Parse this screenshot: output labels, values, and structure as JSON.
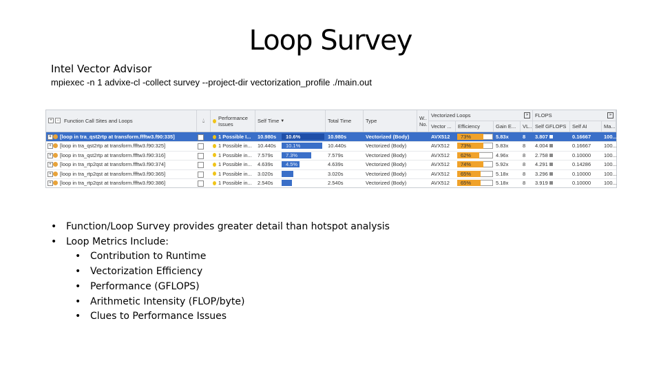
{
  "slide": {
    "title": "Loop Survey",
    "subtitle": "Intel Vector Advisor",
    "command": "mpiexec -n 1 advixe-cl -collect survey --project-dir vectorization_profile ./main.out"
  },
  "advisor": {
    "header": {
      "call_sites": "Function Call Sites and Loops",
      "perf_issues_line1": "Performance",
      "perf_issues_line2": "Issues",
      "self_time": "Self Time",
      "total_time": "Total Time",
      "type": "Type",
      "w_line1": "W..",
      "w_line2": "No.",
      "group_vectorized": "Vectorized Loops",
      "group_flops": "FLOPS",
      "vector": "Vector ...",
      "efficiency": "Efficiency",
      "gain": "Gain E...",
      "vl": "VL...",
      "self_gflops": "Self GFLOPS",
      "self_ai": "Self AI",
      "ma": "Ma..."
    },
    "rows": [
      {
        "name": "[loop in tra_qst2rtp at transform.ffftw3.f90:335]",
        "issues": "1 Possible I...",
        "self_time": "10.980s",
        "self_pct": "10.6%",
        "self_frac": 0.106,
        "total_time": "10.980s",
        "type": "Vectorized (Body)",
        "vector": "AVX512",
        "eff": "73%",
        "eff_frac": 0.73,
        "gain": "5.83x",
        "vl": "8",
        "gflops": "3.807",
        "ai": "0.16667",
        "ma": "100...",
        "selected": true
      },
      {
        "name": "[loop in tra_qst2rtp at transform.ffftw3.f90:325]",
        "issues": "1 Possible in...",
        "self_time": "10.440s",
        "self_pct": "10.1%",
        "self_frac": 0.101,
        "total_time": "10.440s",
        "type": "Vectorized (Body)",
        "vector": "AVX512",
        "eff": "73%",
        "eff_frac": 0.73,
        "gain": "5.83x",
        "vl": "8",
        "gflops": "4.004",
        "ai": "0.16667",
        "ma": "100..."
      },
      {
        "name": "[loop in tra_qst2rtp at transform.ffftw3.f90:316]",
        "issues": "1 Possible in...",
        "self_time": "7.579s",
        "self_pct": "7.3%",
        "self_frac": 0.073,
        "total_time": "7.579s",
        "type": "Vectorized (Body)",
        "vector": "AVX512",
        "eff": "62%",
        "eff_frac": 0.62,
        "gain": "4.96x",
        "vl": "8",
        "gflops": "2.758",
        "ai": "0.10000",
        "ma": "100..."
      },
      {
        "name": "[loop in tra_rtp2qst at transform.ffftw3.f90:374]",
        "issues": "1 Possible in...",
        "self_time": "4.639s",
        "self_pct": "4.5%",
        "self_frac": 0.045,
        "total_time": "4.639s",
        "type": "Vectorized (Body)",
        "vector": "AVX512",
        "eff": "74%",
        "eff_frac": 0.74,
        "gain": "5.92x",
        "vl": "8",
        "gflops": "4.291",
        "ai": "0.14286",
        "ma": "100..."
      },
      {
        "name": "[loop in tra_rtp2qst at transform.ffftw3.f90:365]",
        "issues": "1 Possible in...",
        "self_time": "3.020s",
        "self_pct": "",
        "self_frac": 0.029,
        "total_time": "3.020s",
        "type": "Vectorized (Body)",
        "vector": "AVX512",
        "eff": "65%",
        "eff_frac": 0.65,
        "gain": "5.18x",
        "vl": "8",
        "gflops": "3.296",
        "ai": "0.10000",
        "ma": "100..."
      },
      {
        "name": "[loop in tra_rtp2qst at transform.ffftw3.f90:386]",
        "issues": "1 Possible in...",
        "self_time": "2.540s",
        "self_pct": "",
        "self_frac": 0.025,
        "total_time": "2.540s",
        "type": "Vectorized (Body)",
        "vector": "AVX512",
        "eff": "65%",
        "eff_frac": 0.65,
        "gain": "5.18x",
        "vl": "8",
        "gflops": "3.919",
        "ai": "0.10000",
        "ma": "100..."
      }
    ]
  },
  "bullets": {
    "b1": "Function/Loop Survey provides greater detail than hotspot analysis",
    "b2": "Loop Metrics Include:",
    "sub": [
      "Contribution to Runtime",
      "Vectorization Efficiency",
      "Performance (GFLOPS)",
      "Arithmetic Intensity (FLOP/byte)",
      "Clues to Performance Issues"
    ]
  },
  "colors": {
    "selection": "#3a6fc8",
    "efficiency_bar": "#f0a22a",
    "time_bar": "#3a6fc8"
  }
}
